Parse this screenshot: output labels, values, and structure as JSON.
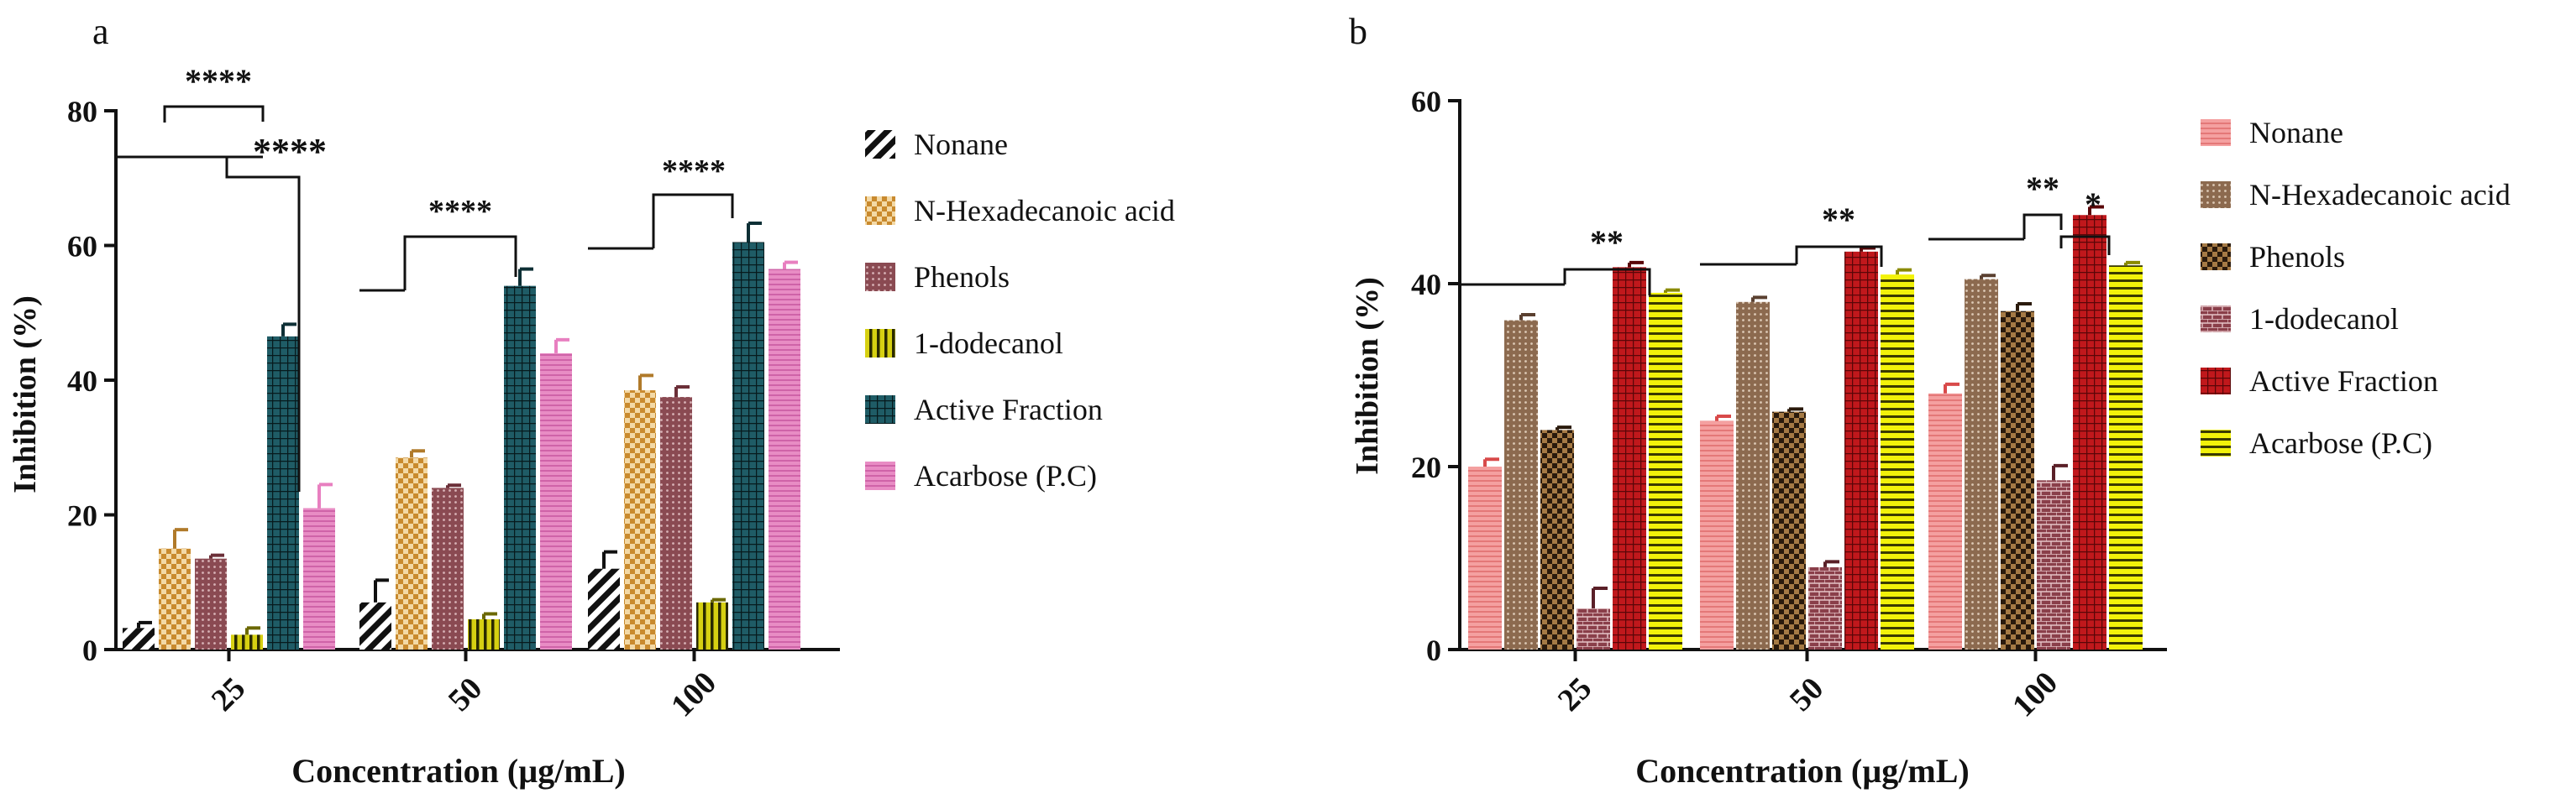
{
  "chart_data": [
    {
      "panel_label": "a",
      "type": "bar",
      "title": "",
      "xlabel": "Concentration (µg/mL)",
      "ylabel": "Inhibition (%)",
      "ylim": [
        0,
        80
      ],
      "yticks": [
        0,
        20,
        40,
        60,
        80
      ],
      "categories": [
        "25",
        "50",
        "100"
      ],
      "series": [
        {
          "name": "Nonane",
          "values": [
            3.2,
            7.0,
            12.0
          ],
          "errors": [
            0.8,
            3.3,
            2.5
          ],
          "color": "#111111",
          "pattern": "diag"
        },
        {
          "name": "N-Hexadecanoic acid",
          "values": [
            15.0,
            28.5,
            38.5
          ],
          "errors": [
            2.8,
            1.0,
            2.2
          ],
          "color": "#e1b46a",
          "pattern": "check"
        },
        {
          "name": "Phenols",
          "values": [
            13.5,
            24.0,
            37.5
          ],
          "errors": [
            0.5,
            0.4,
            1.5
          ],
          "color": "#8a4a52",
          "pattern": "dots"
        },
        {
          "name": "1-dodecanol",
          "values": [
            2.2,
            4.5,
            7.0
          ],
          "errors": [
            1.0,
            0.8,
            0.4
          ],
          "color": "#c9c20a",
          "pattern": "vlines"
        },
        {
          "name": "Active Fraction",
          "values": [
            46.5,
            54.0,
            60.5
          ],
          "errors": [
            1.8,
            2.5,
            2.8
          ],
          "color": "#1f5c66",
          "pattern": "grid"
        },
        {
          "name": "Acarbose (P.C)",
          "values": [
            21.0,
            44.0,
            56.5
          ],
          "errors": [
            3.5,
            2.0,
            1.0
          ],
          "color": "#e87fc0",
          "pattern": "fine"
        }
      ],
      "annotations": [
        "****",
        "****",
        "****",
        "****"
      ]
    },
    {
      "panel_label": "b",
      "type": "bar",
      "title": "",
      "xlabel": "Concentration (µg/mL)",
      "ylabel": "Inhibition (%)",
      "ylim": [
        0,
        60
      ],
      "yticks": [
        0,
        20,
        40,
        60
      ],
      "categories": [
        "25",
        "50",
        "100"
      ],
      "series": [
        {
          "name": "Nonane",
          "values": [
            20.0,
            25.0,
            28.0
          ],
          "errors": [
            0.8,
            0.5,
            1.0
          ],
          "color": "#f08a8a",
          "pattern": "fine"
        },
        {
          "name": "N-Hexadecanoic acid",
          "values": [
            36.0,
            38.0,
            40.5
          ],
          "errors": [
            0.6,
            0.5,
            0.4
          ],
          "color": "#8c6a4f",
          "pattern": "dots"
        },
        {
          "name": "Phenols",
          "values": [
            24.0,
            26.0,
            37.0
          ],
          "errors": [
            0.3,
            0.3,
            0.8
          ],
          "color": "#5a3a1e",
          "pattern": "check"
        },
        {
          "name": "1-dodecanol",
          "values": [
            4.5,
            9.0,
            18.5
          ],
          "errors": [
            2.2,
            0.6,
            1.6
          ],
          "color": "#8a3f4a",
          "pattern": "brick"
        },
        {
          "name": "Active Fraction",
          "values": [
            41.8,
            43.5,
            47.5
          ],
          "errors": [
            0.5,
            0.4,
            0.9
          ],
          "color": "#c0181c",
          "pattern": "grid"
        },
        {
          "name": "Acarbose (P.C)",
          "values": [
            39.0,
            41.0,
            42.0
          ],
          "errors": [
            0.3,
            0.5,
            0.3
          ],
          "color": "#f2f20a",
          "pattern": "hlines"
        }
      ],
      "annotations": [
        "**",
        "**",
        "**",
        "*"
      ]
    }
  ]
}
